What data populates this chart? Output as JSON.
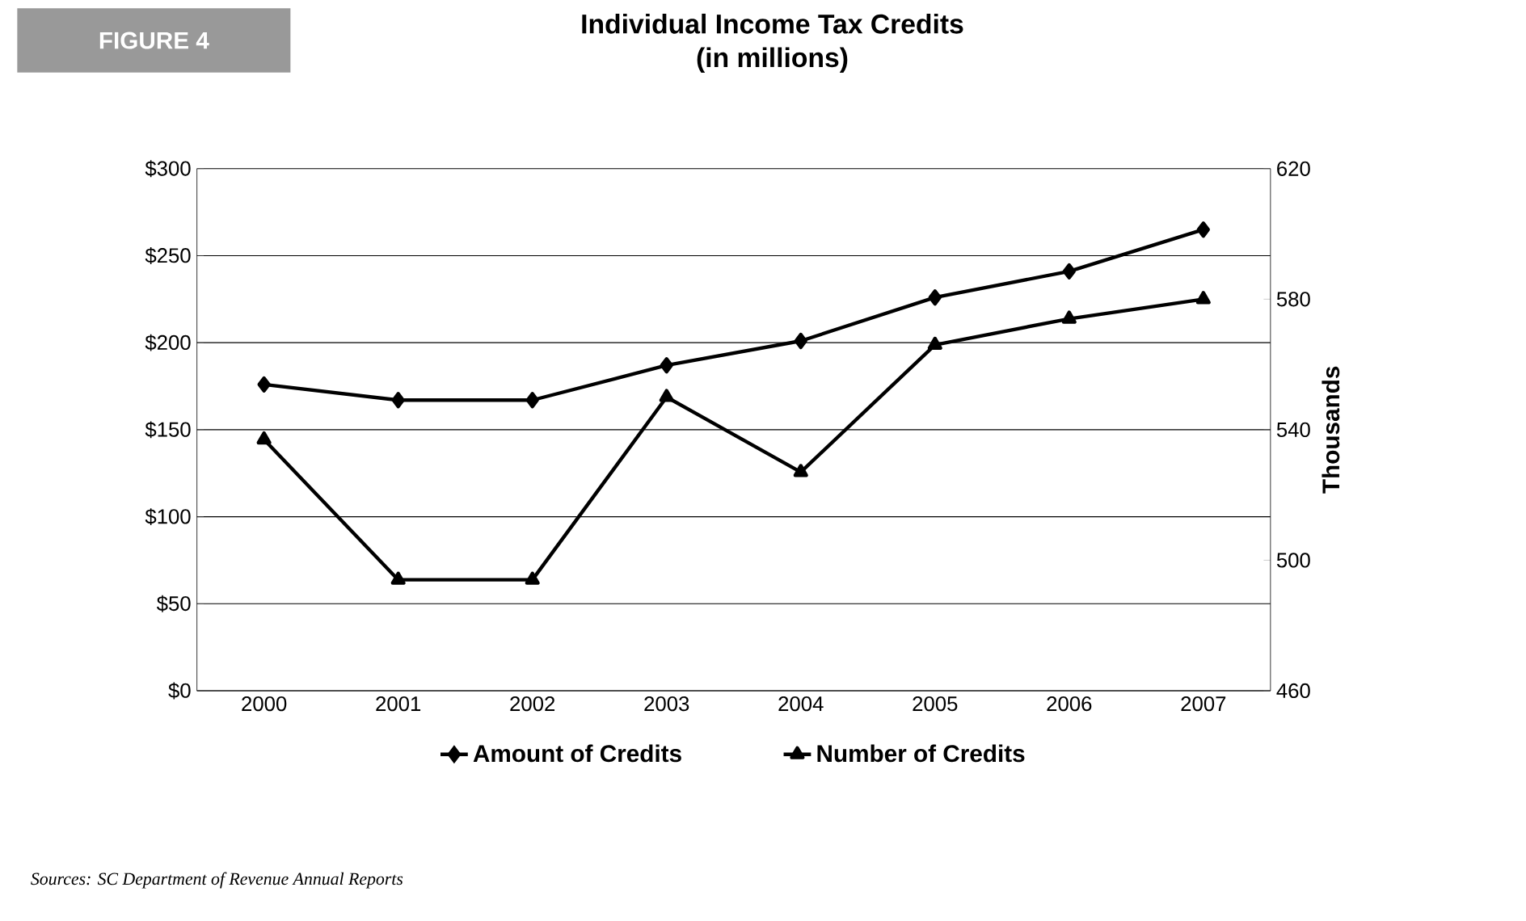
{
  "chart_data": {
    "type": "line",
    "title": "Individual Income Tax Credits",
    "subtitle": "(in millions)",
    "y2label": "Thousands",
    "categories": [
      "2000",
      "2001",
      "2002",
      "2003",
      "2004",
      "2005",
      "2006",
      "2007"
    ],
    "series": [
      {
        "name": "Amount of Credits",
        "color": "#000000",
        "marker": "diamond",
        "values": [
          176,
          167,
          167,
          187,
          201,
          226,
          241,
          265
        ]
      },
      {
        "name": "Number of Credits",
        "color": "#000000",
        "marker": "triangle",
        "axis": "y2",
        "values": [
          537,
          494,
          494,
          550,
          527,
          566,
          574,
          580
        ]
      }
    ],
    "ylim": [
      0,
      300
    ],
    "yticks": [
      {
        "value": 0,
        "label": "$0"
      },
      {
        "value": 50,
        "label": "$50"
      },
      {
        "value": 100,
        "label": "$100"
      },
      {
        "value": 150,
        "label": "$150"
      },
      {
        "value": 200,
        "label": "$200"
      },
      {
        "value": 250,
        "label": "$250"
      },
      {
        "value": 300,
        "label": "$300"
      }
    ],
    "y2lim": [
      460,
      620
    ],
    "y2ticks": [
      460,
      500,
      540,
      580,
      620
    ],
    "grid": "y",
    "legend": "bottom",
    "line_style": "solid",
    "annotations": [
      "FIGURE 4",
      "Sources: SC Department of Revenue Annual Reports"
    ]
  }
}
